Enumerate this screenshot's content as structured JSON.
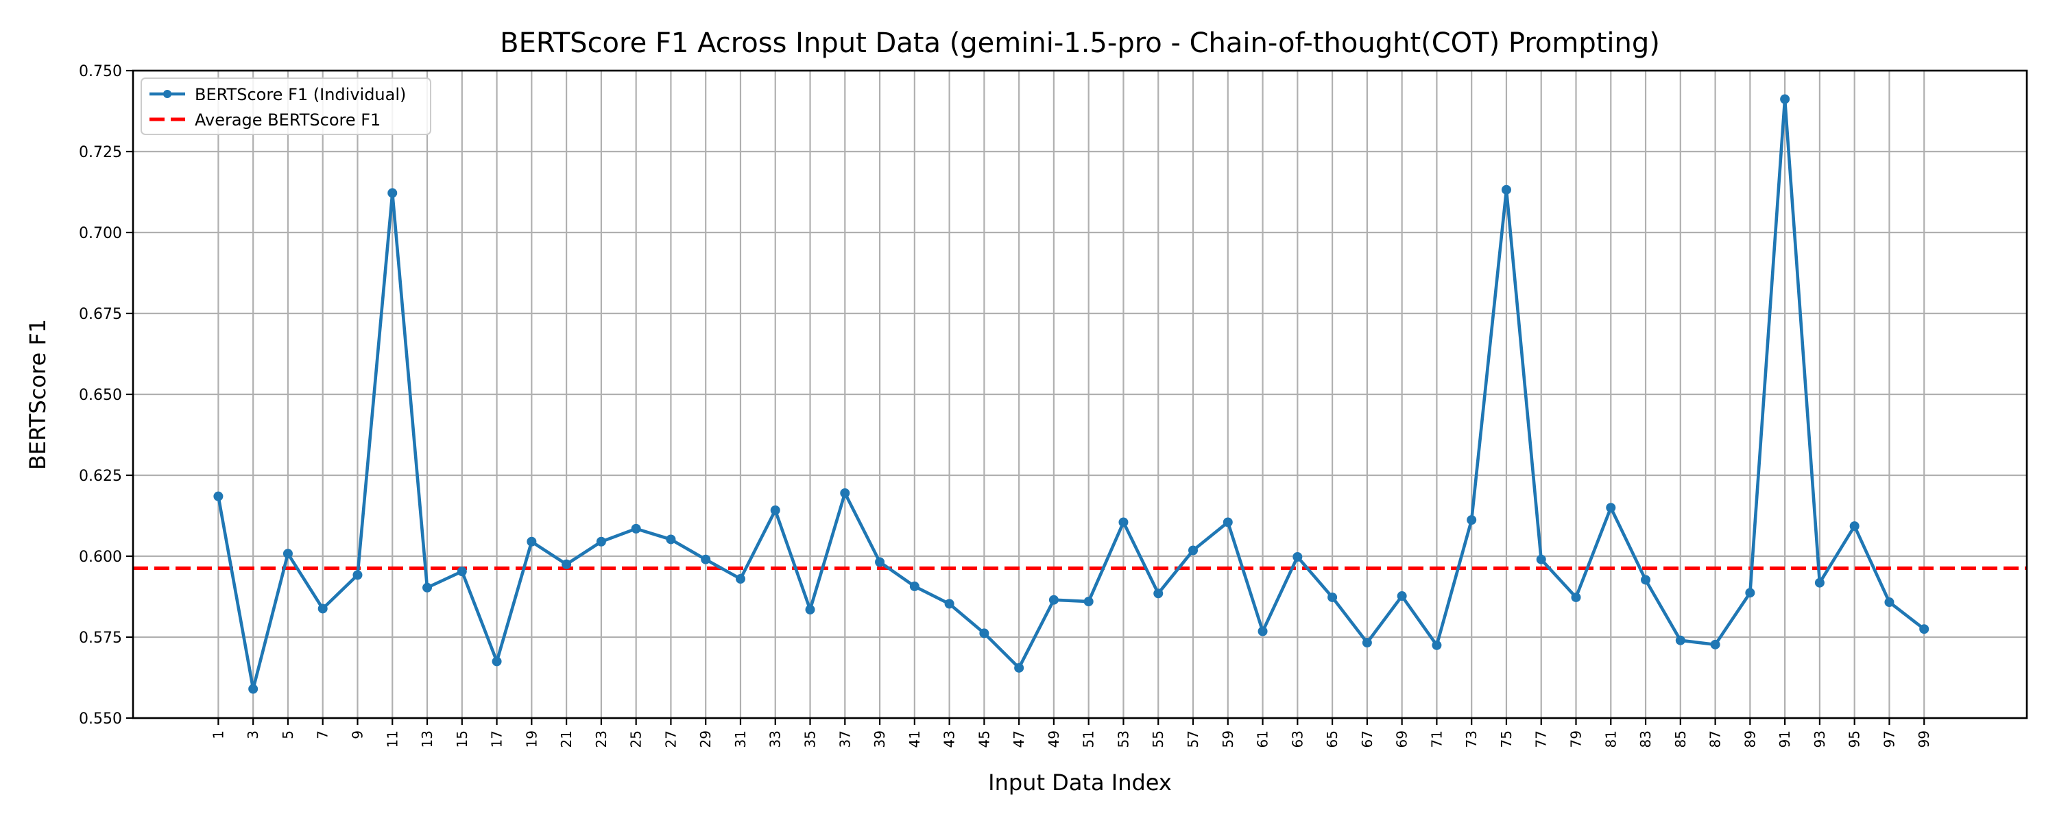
{
  "chart_data": {
    "type": "line",
    "title": "BERTScore F1 Across Input Data (gemini-1.5-pro - Chain-of-thought(COT) Prompting)",
    "xlabel": "Input Data Index",
    "ylabel": "BERTScore F1",
    "x": [
      1,
      3,
      5,
      7,
      9,
      11,
      13,
      15,
      17,
      19,
      21,
      23,
      25,
      27,
      29,
      31,
      33,
      35,
      37,
      39,
      41,
      43,
      45,
      47,
      49,
      51,
      53,
      55,
      57,
      59,
      61,
      63,
      65,
      67,
      69,
      71,
      73,
      75,
      77,
      79,
      81,
      83,
      85,
      87,
      89,
      91,
      93,
      95,
      97,
      99
    ],
    "x_ticks": [
      "1",
      "3",
      "5",
      "7",
      "9",
      "11",
      "13",
      "15",
      "17",
      "19",
      "21",
      "23",
      "25",
      "27",
      "29",
      "31",
      "33",
      "35",
      "37",
      "39",
      "41",
      "43",
      "45",
      "47",
      "49",
      "51",
      "53",
      "55",
      "57",
      "59",
      "61",
      "63",
      "65",
      "67",
      "69",
      "71",
      "73",
      "75",
      "77",
      "79",
      "81",
      "83",
      "85",
      "87",
      "89",
      "91",
      "93",
      "95",
      "97",
      "99"
    ],
    "xlim": [
      -3.9,
      104.9
    ],
    "ylim": [
      0.55,
      0.75
    ],
    "y_ticks": [
      "0.550",
      "0.575",
      "0.600",
      "0.625",
      "0.650",
      "0.675",
      "0.700",
      "0.725",
      "0.750"
    ],
    "grid": true,
    "legend_position": "top-left",
    "series": [
      {
        "name": "BERTScore F1 (Individual)",
        "color": "#1f77b4",
        "marker": "circle",
        "values": [
          0.6185,
          0.559,
          0.6008,
          0.5838,
          0.5942,
          0.7122,
          0.5903,
          0.5953,
          0.5675,
          0.6045,
          0.5975,
          0.6045,
          0.6085,
          0.6052,
          0.599,
          0.593,
          0.6142,
          0.5835,
          0.6195,
          0.5982,
          0.5907,
          0.5853,
          0.5762,
          0.5655,
          0.5865,
          0.586,
          0.6105,
          0.5885,
          0.6018,
          0.6105,
          0.5768,
          0.5998,
          0.5873,
          0.5733,
          0.5877,
          0.5725,
          0.6112,
          0.7132,
          0.599,
          0.5873,
          0.615,
          0.5927,
          0.574,
          0.5727,
          0.5887,
          0.7412,
          0.5918,
          0.6093,
          0.5858,
          0.5775
        ]
      }
    ],
    "reference_lines": [
      {
        "name": "Average BERTScore F1",
        "value": 0.5963,
        "color": "#ff0000",
        "style": "dashed"
      }
    ]
  }
}
